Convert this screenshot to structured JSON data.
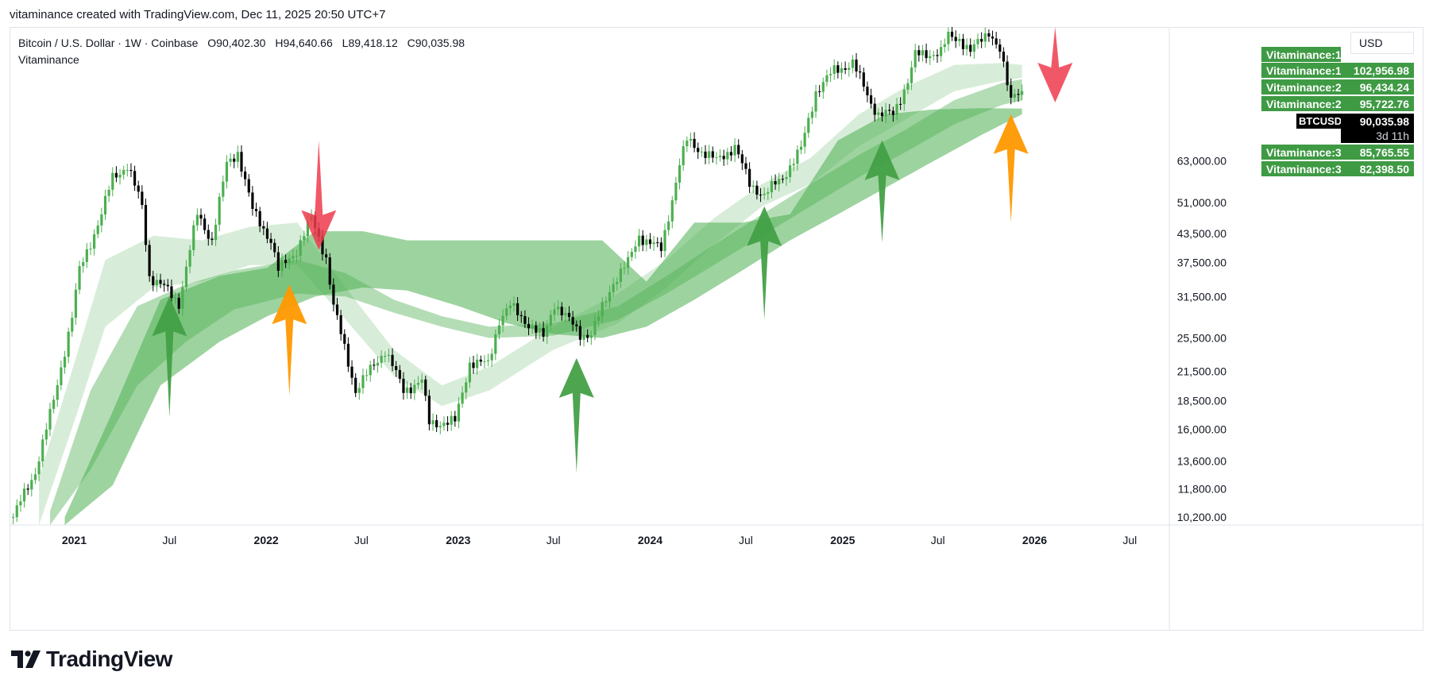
{
  "header": {
    "caption": "vitaminance created with TradingView.com, Dec 11, 2025 20:50 UTC+7"
  },
  "legend": {
    "symbol": "Bitcoin / U.S. Dollar · 1W · Coinbase",
    "open": "O90,402.30",
    "high": "H94,640.66",
    "low": "L89,418.12",
    "close": "C90,035.98",
    "indicator": "Vitaminance"
  },
  "currency": "USD",
  "tags": {
    "v1_top": "Vitaminance:1",
    "v1": {
      "label": "Vitaminance:1",
      "value": "102,956.98"
    },
    "v2a": {
      "label": "Vitaminance:2",
      "value": "96,434.24"
    },
    "v2b": {
      "label": "Vitaminance:2",
      "value": "95,722.76"
    },
    "price": {
      "label": "BTCUSD",
      "value": "90,035.98",
      "countdown": "3d 11h"
    },
    "v3a": {
      "label": "Vitaminance:3",
      "value": "85,765.55"
    },
    "v3b": {
      "label": "Vitaminance:3",
      "value": "82,398.50"
    }
  },
  "footer": {
    "brand": "TradingView"
  },
  "colors": {
    "up": "#4caf50",
    "down": "#000000",
    "green_arrow": "#43a047",
    "orange_arrow": "#ff9800",
    "red_arrow": "#ef3b4c"
  },
  "chart_data": {
    "type": "candlestick",
    "title": "Bitcoin / U.S. Dollar · 1W · Coinbase",
    "y_scale": "log",
    "ylim": [
      9800,
      125000
    ],
    "xlim": [
      "2020-08-31",
      "2026-09-14"
    ],
    "x_ticks": [
      {
        "date": "2021-01-01",
        "label": "2021",
        "bold": true
      },
      {
        "date": "2021-07-01",
        "label": "Jul",
        "bold": false
      },
      {
        "date": "2022-01-01",
        "label": "2022",
        "bold": true
      },
      {
        "date": "2022-07-01",
        "label": "Jul",
        "bold": false
      },
      {
        "date": "2023-01-01",
        "label": "2023",
        "bold": true
      },
      {
        "date": "2023-07-01",
        "label": "Jul",
        "bold": false
      },
      {
        "date": "2024-01-01",
        "label": "2024",
        "bold": true
      },
      {
        "date": "2024-07-01",
        "label": "Jul",
        "bold": false
      },
      {
        "date": "2025-01-01",
        "label": "2025",
        "bold": true
      },
      {
        "date": "2025-07-01",
        "label": "Jul",
        "bold": false
      },
      {
        "date": "2026-01-01",
        "label": "2026",
        "bold": true
      },
      {
        "date": "2026-07-01",
        "label": "Jul",
        "bold": false
      }
    ],
    "y_ticks": [
      63000,
      51000,
      43500,
      37500,
      31500,
      25500,
      21500,
      18500,
      16000,
      13600,
      11800,
      10200
    ],
    "y_tick_labels": [
      "63,000.00",
      "51,000.00",
      "43,500.00",
      "37,500.00",
      "31,500.00",
      "25,500.00",
      "21,500.00",
      "18,500.00",
      "16,000.00",
      "13,600.00",
      "11,800.00",
      "10,200.00"
    ],
    "price_path": [
      [
        "2020-09-07",
        10200
      ],
      [
        "2020-10-19",
        12900
      ],
      [
        "2020-11-23",
        18500
      ],
      [
        "2020-12-28",
        28500
      ],
      [
        "2021-01-11",
        36000
      ],
      [
        "2021-02-22",
        48000
      ],
      [
        "2021-03-15",
        58000
      ],
      [
        "2021-04-12",
        61500
      ],
      [
        "2021-05-10",
        50000
      ],
      [
        "2021-05-24",
        35000
      ],
      [
        "2021-06-21",
        33000
      ],
      [
        "2021-07-19",
        30500
      ],
      [
        "2021-08-23",
        48000
      ],
      [
        "2021-09-20",
        42000
      ],
      [
        "2021-10-18",
        62000
      ],
      [
        "2021-11-08",
        66000
      ],
      [
        "2021-12-06",
        49000
      ],
      [
        "2022-01-10",
        42000
      ],
      [
        "2022-01-24",
        36000
      ],
      [
        "2022-02-28",
        40000
      ],
      [
        "2022-03-28",
        47000
      ],
      [
        "2022-04-25",
        38500
      ],
      [
        "2022-05-09",
        30000
      ],
      [
        "2022-06-13",
        21000
      ],
      [
        "2022-06-20",
        19500
      ],
      [
        "2022-08-15",
        24000
      ],
      [
        "2022-09-19",
        19500
      ],
      [
        "2022-10-24",
        20500
      ],
      [
        "2022-11-07",
        16500
      ],
      [
        "2022-12-26",
        16600
      ],
      [
        "2023-01-23",
        22500
      ],
      [
        "2023-02-27",
        22300
      ],
      [
        "2023-03-20",
        28000
      ],
      [
        "2023-04-10",
        30000
      ],
      [
        "2023-06-12",
        25500
      ],
      [
        "2023-07-03",
        30500
      ],
      [
        "2023-08-21",
        26000
      ],
      [
        "2023-09-11",
        26000
      ],
      [
        "2023-10-23",
        34000
      ],
      [
        "2023-11-20",
        37500
      ],
      [
        "2023-12-11",
        43000
      ],
      [
        "2024-01-22",
        40000
      ],
      [
        "2024-02-26",
        62000
      ],
      [
        "2024-03-11",
        70000
      ],
      [
        "2024-05-06",
        63000
      ],
      [
        "2024-06-10",
        68000
      ],
      [
        "2024-07-08",
        56000
      ],
      [
        "2024-08-05",
        53000
      ],
      [
        "2024-09-09",
        58000
      ],
      [
        "2024-10-14",
        67000
      ],
      [
        "2024-11-11",
        90000
      ],
      [
        "2024-12-16",
        100000
      ],
      [
        "2025-01-20",
        104000
      ],
      [
        "2025-02-24",
        85000
      ],
      [
        "2025-03-10",
        80000
      ],
      [
        "2025-04-07",
        80000
      ],
      [
        "2025-05-05",
        95000
      ],
      [
        "2025-05-19",
        108000
      ],
      [
        "2025-07-07",
        110000
      ],
      [
        "2025-07-21",
        119000
      ],
      [
        "2025-08-11",
        118000
      ],
      [
        "2025-09-01",
        110000
      ],
      [
        "2025-10-06",
        123000
      ],
      [
        "2025-10-27",
        110000
      ],
      [
        "2025-11-17",
        86000
      ],
      [
        "2025-11-24",
        90500
      ],
      [
        "2025-12-08",
        90036
      ]
    ],
    "bands": [
      {
        "name": "Vitaminance:1",
        "opacity": 0.22,
        "upper": [
          [
            "2020-10-26",
            12500
          ],
          [
            "2021-01-04",
            23000
          ],
          [
            "2021-03-01",
            38000
          ],
          [
            "2021-06-01",
            43000
          ],
          [
            "2021-09-01",
            42000
          ],
          [
            "2021-12-01",
            45000
          ],
          [
            "2022-03-01",
            46000
          ],
          [
            "2022-06-01",
            33000
          ],
          [
            "2022-09-01",
            24000
          ],
          [
            "2022-12-01",
            20000
          ],
          [
            "2023-03-01",
            22000
          ],
          [
            "2023-07-01",
            27000
          ],
          [
            "2023-11-01",
            32000
          ],
          [
            "2024-02-01",
            38000
          ],
          [
            "2024-05-01",
            47000
          ],
          [
            "2024-08-01",
            56000
          ],
          [
            "2024-11-01",
            64000
          ],
          [
            "2025-02-01",
            80000
          ],
          [
            "2025-05-01",
            92000
          ],
          [
            "2025-08-01",
            103000
          ],
          [
            "2025-11-01",
            104000
          ],
          [
            "2025-12-08",
            103000
          ]
        ],
        "lower": [
          [
            "2020-10-26",
            9800
          ],
          [
            "2021-01-04",
            17000
          ],
          [
            "2021-03-01",
            27000
          ],
          [
            "2021-06-01",
            33000
          ],
          [
            "2021-09-01",
            34000
          ],
          [
            "2021-12-01",
            37000
          ],
          [
            "2022-03-01",
            37000
          ],
          [
            "2022-06-01",
            28000
          ],
          [
            "2022-09-01",
            21000
          ],
          [
            "2022-12-01",
            18000
          ],
          [
            "2023-03-01",
            19500
          ],
          [
            "2023-07-01",
            24000
          ],
          [
            "2023-11-01",
            27500
          ],
          [
            "2024-02-01",
            33000
          ],
          [
            "2024-05-01",
            41000
          ],
          [
            "2024-08-01",
            50000
          ],
          [
            "2024-11-01",
            56000
          ],
          [
            "2025-02-01",
            68000
          ],
          [
            "2025-05-01",
            78000
          ],
          [
            "2025-08-01",
            90000
          ],
          [
            "2025-11-01",
            95000
          ],
          [
            "2025-12-08",
            96400
          ]
        ]
      },
      {
        "name": "Vitaminance:2",
        "opacity": 0.42,
        "upper": [
          [
            "2020-11-16",
            10500
          ],
          [
            "2021-02-01",
            19500
          ],
          [
            "2021-05-01",
            30000
          ],
          [
            "2021-08-01",
            33500
          ],
          [
            "2021-11-01",
            36000
          ],
          [
            "2022-03-01",
            38000
          ],
          [
            "2022-06-01",
            35500
          ],
          [
            "2022-09-01",
            31000
          ],
          [
            "2022-12-01",
            28500
          ],
          [
            "2023-03-01",
            27000
          ],
          [
            "2023-07-01",
            27500
          ],
          [
            "2023-11-01",
            30000
          ],
          [
            "2024-02-01",
            35000
          ],
          [
            "2024-05-01",
            41000
          ],
          [
            "2024-08-01",
            48000
          ],
          [
            "2024-11-01",
            56000
          ],
          [
            "2025-02-01",
            65000
          ],
          [
            "2025-05-01",
            74000
          ],
          [
            "2025-08-01",
            86000
          ],
          [
            "2025-11-01",
            94000
          ],
          [
            "2025-12-08",
            95700
          ]
        ],
        "lower": [
          [
            "2020-11-16",
            9800
          ],
          [
            "2021-02-01",
            13000
          ],
          [
            "2021-05-01",
            20000
          ],
          [
            "2021-08-01",
            25000
          ],
          [
            "2021-11-01",
            29500
          ],
          [
            "2022-03-01",
            32000
          ],
          [
            "2022-06-01",
            31500
          ],
          [
            "2022-09-01",
            29000
          ],
          [
            "2022-12-01",
            27000
          ],
          [
            "2023-03-01",
            25500
          ],
          [
            "2023-07-01",
            25800
          ],
          [
            "2023-11-01",
            28000
          ],
          [
            "2024-02-01",
            32000
          ],
          [
            "2024-05-01",
            37000
          ],
          [
            "2024-08-01",
            43000
          ],
          [
            "2024-11-01",
            50000
          ],
          [
            "2025-02-01",
            58000
          ],
          [
            "2025-05-01",
            66000
          ],
          [
            "2025-08-01",
            76000
          ],
          [
            "2025-11-01",
            84000
          ],
          [
            "2025-12-08",
            85800
          ]
        ]
      },
      {
        "name": "Vitaminance:3",
        "opacity": 0.55,
        "upper": [
          [
            "2020-12-14",
            10200
          ],
          [
            "2021-03-15",
            17500
          ],
          [
            "2021-06-14",
            31000
          ],
          [
            "2021-10-04",
            35000
          ],
          [
            "2022-01-03",
            36500
          ],
          [
            "2022-04-04",
            44000
          ],
          [
            "2022-07-04",
            44000
          ],
          [
            "2022-09-26",
            42000
          ],
          [
            "2023-01-02",
            42000
          ],
          [
            "2023-04-03",
            42000
          ],
          [
            "2023-07-03",
            42000
          ],
          [
            "2023-10-02",
            42000
          ],
          [
            "2023-12-25",
            34000
          ],
          [
            "2024-03-25",
            46000
          ],
          [
            "2024-06-24",
            46000
          ],
          [
            "2024-09-23",
            48000
          ],
          [
            "2024-12-23",
            70000
          ],
          [
            "2025-03-24",
            80000
          ],
          [
            "2025-06-23",
            82000
          ],
          [
            "2025-09-22",
            82500
          ],
          [
            "2025-12-08",
            82400
          ]
        ],
        "lower": [
          [
            "2020-12-14",
            9800
          ],
          [
            "2021-03-15",
            12000
          ],
          [
            "2021-06-14",
            20000
          ],
          [
            "2021-10-04",
            25000
          ],
          [
            "2022-01-03",
            28500
          ],
          [
            "2022-04-04",
            31500
          ],
          [
            "2022-07-04",
            33000
          ],
          [
            "2022-09-26",
            32500
          ],
          [
            "2023-01-02",
            30000
          ],
          [
            "2023-04-03",
            27500
          ],
          [
            "2023-07-03",
            26000
          ],
          [
            "2023-10-02",
            25500
          ],
          [
            "2023-12-25",
            27000
          ],
          [
            "2024-03-25",
            31000
          ],
          [
            "2024-06-24",
            36000
          ],
          [
            "2024-09-23",
            42000
          ],
          [
            "2024-12-23",
            48000
          ],
          [
            "2025-03-24",
            55000
          ],
          [
            "2025-06-23",
            63000
          ],
          [
            "2025-09-22",
            72000
          ],
          [
            "2025-12-08",
            80000
          ]
        ]
      }
    ],
    "arrows": [
      {
        "color": "green",
        "direction": "up",
        "date": "2021-07-01",
        "tip": 31500,
        "tail": 17000
      },
      {
        "color": "orange",
        "direction": "up",
        "date": "2022-02-14",
        "tip": 33500,
        "tail": 19000
      },
      {
        "color": "red",
        "direction": "down",
        "date": "2022-04-11",
        "tip": 40000,
        "tail": 70000
      },
      {
        "color": "green",
        "direction": "up",
        "date": "2023-08-14",
        "tip": 23000,
        "tail": 12800
      },
      {
        "color": "green",
        "direction": "up",
        "date": "2024-08-05",
        "tip": 50000,
        "tail": 28000
      },
      {
        "color": "green",
        "direction": "up",
        "date": "2025-03-17",
        "tip": 70000,
        "tail": 41500
      },
      {
        "color": "orange",
        "direction": "up",
        "date": "2025-11-17",
        "tip": 80000,
        "tail": 46000
      },
      {
        "color": "red",
        "direction": "down",
        "date": "2026-02-09",
        "tip": 85000,
        "tail": 125000
      }
    ]
  }
}
